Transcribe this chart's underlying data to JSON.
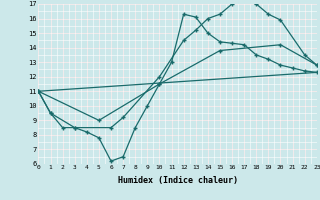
{
  "xlabel": "Humidex (Indice chaleur)",
  "bg_color": "#cce8ea",
  "line_color": "#1a6b6b",
  "grid_white": "#ffffff",
  "grid_pink": "#e8c8c8",
  "xlim": [
    0,
    23
  ],
  "ylim": [
    6,
    17
  ],
  "xticks": [
    0,
    1,
    2,
    3,
    4,
    5,
    6,
    7,
    8,
    9,
    10,
    11,
    12,
    13,
    14,
    15,
    16,
    17,
    18,
    19,
    20,
    21,
    22,
    23
  ],
  "yticks": [
    6,
    7,
    8,
    9,
    10,
    11,
    12,
    13,
    14,
    15,
    16,
    17
  ],
  "line1_x": [
    0,
    1,
    2,
    3,
    4,
    5,
    6,
    7,
    8,
    9,
    10,
    11,
    12,
    13,
    14,
    15,
    16,
    17,
    18,
    19,
    20,
    21,
    22,
    23
  ],
  "line1_y": [
    11,
    9.5,
    8.5,
    8.5,
    8.2,
    7.8,
    6.2,
    6.5,
    8.5,
    10.0,
    11.5,
    13.0,
    16.3,
    16.1,
    15.0,
    14.4,
    14.3,
    14.2,
    13.5,
    13.2,
    12.8,
    12.6,
    12.4,
    12.3
  ],
  "line2_x": [
    0,
    1,
    3,
    6,
    7,
    10,
    12,
    13,
    14,
    15,
    16,
    17,
    18,
    19,
    20,
    22,
    23
  ],
  "line2_y": [
    11,
    9.5,
    8.5,
    8.5,
    9.2,
    12.0,
    14.5,
    15.2,
    16.0,
    16.3,
    17.0,
    17.2,
    17.0,
    16.3,
    15.9,
    13.5,
    12.8
  ],
  "line3_x": [
    0,
    23
  ],
  "line3_y": [
    11,
    12.3
  ],
  "line3b_x": [
    0,
    5,
    10,
    15,
    20,
    23
  ],
  "line3b_y": [
    11,
    9.0,
    11.5,
    13.8,
    14.2,
    12.8
  ]
}
